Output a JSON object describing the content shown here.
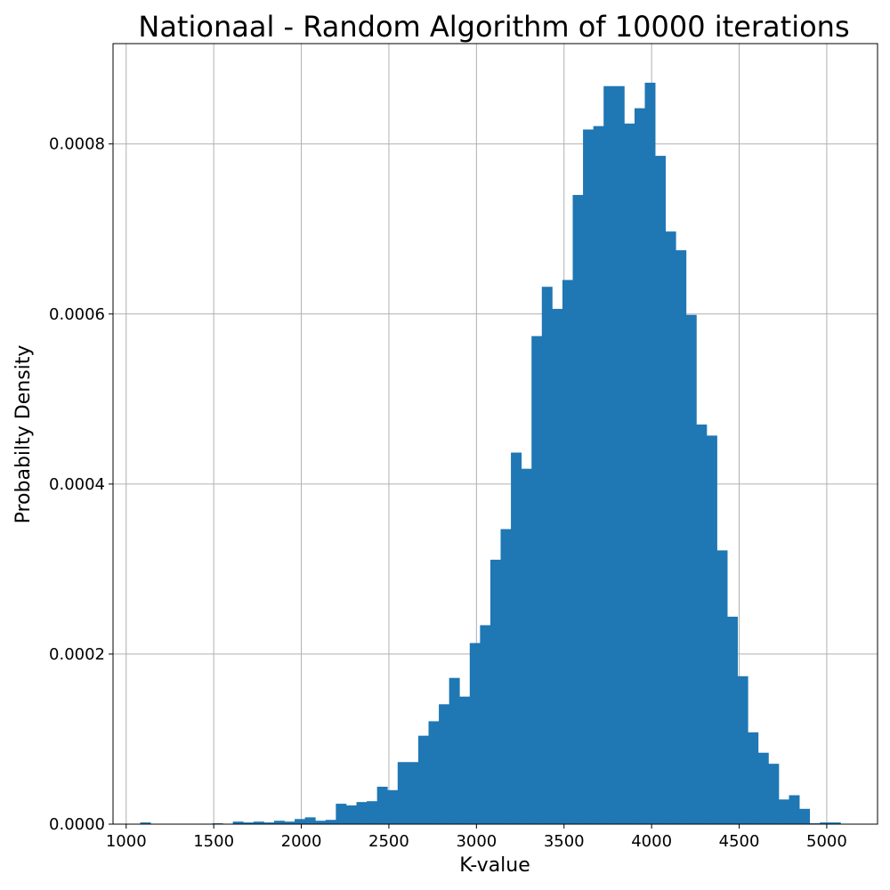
{
  "chart_data": {
    "type": "bar",
    "subtype": "histogram",
    "title": "Nationaal - Random Algorithm of 10000 iterations",
    "xlabel": "K-value",
    "ylabel": "Probabilty Density",
    "xlim": [
      925,
      5290
    ],
    "ylim": [
      0,
      0.000918
    ],
    "grid": true,
    "color": "#1f77b4",
    "x_ticks": [
      1000,
      1500,
      2000,
      2500,
      3000,
      3500,
      4000,
      4500,
      5000
    ],
    "x_tick_labels": [
      "1000",
      "1500",
      "2000",
      "2500",
      "3000",
      "3500",
      "4000",
      "4500",
      "5000"
    ],
    "y_ticks": [
      0,
      0.0002,
      0.0004,
      0.0006,
      0.0008
    ],
    "y_tick_labels": [
      "0.0000",
      "0.0002",
      "0.0004",
      "0.0006",
      "0.0008"
    ],
    "bin_start": 1080,
    "bin_width": 58.8,
    "values": [
      2e-06,
      0,
      0,
      0,
      0,
      0,
      0,
      1e-06,
      0,
      3e-06,
      2e-06,
      3e-06,
      2e-06,
      4e-06,
      3e-06,
      6e-06,
      8e-06,
      4e-06,
      5e-06,
      2.4e-05,
      2.2e-05,
      2.6e-05,
      2.7e-05,
      4.4e-05,
      4e-05,
      7.3e-05,
      7.3e-05,
      0.000104,
      0.000121,
      0.000141,
      0.000172,
      0.00015,
      0.000213,
      0.000234,
      0.000311,
      0.000347,
      0.000437,
      0.000418,
      0.000574,
      0.000632,
      0.000606,
      0.00064,
      0.00074,
      0.000817,
      0.000821,
      0.000868,
      0.000868,
      0.000824,
      0.000842,
      0.000872,
      0.000786,
      0.000697,
      0.000675,
      0.000599,
      0.00047,
      0.000457,
      0.000322,
      0.000244,
      0.000174,
      0.000108,
      8.4e-05,
      7.1e-05,
      2.9e-05,
      3.4e-05,
      1.8e-05,
      1e-06,
      2e-06,
      2e-06
    ]
  }
}
